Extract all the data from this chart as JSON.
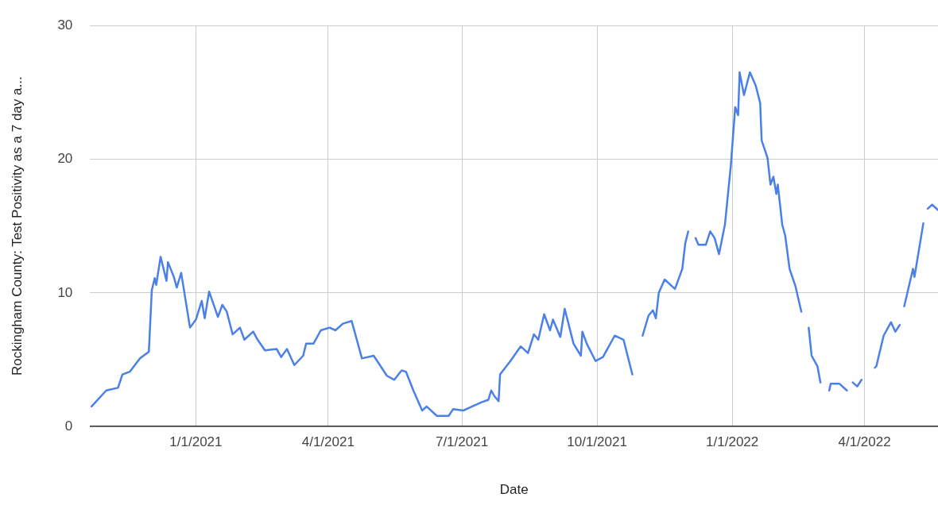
{
  "chart_data": {
    "type": "line",
    "xlabel": "Date",
    "ylabel": "Rockingham County: Test Positivity as a 7 day a...",
    "xlim": [
      "2020-10-21",
      "2022-05-21"
    ],
    "xticks": [
      {
        "value": "2021-01-01",
        "label": "1/1/2021"
      },
      {
        "value": "2021-04-01",
        "label": "4/1/2021"
      },
      {
        "value": "2021-07-01",
        "label": "7/1/2021"
      },
      {
        "value": "2021-10-01",
        "label": "10/1/2021"
      },
      {
        "value": "2022-01-01",
        "label": "1/1/2022"
      },
      {
        "value": "2022-04-01",
        "label": "4/1/2022"
      }
    ],
    "ylim": [
      0,
      30
    ],
    "yticks": [
      0,
      10,
      20,
      30
    ],
    "grid": true,
    "legend": false,
    "marker": "none",
    "line_style": "solid",
    "x": [
      "2020-10-22",
      "2020-11-01",
      "2020-11-09",
      "2020-11-12",
      "2020-11-17",
      "2020-11-24",
      "2020-11-30",
      "2020-12-02",
      "2020-12-04",
      "2020-12-05",
      "2020-12-08",
      "2020-12-12",
      "2020-12-13",
      "2020-12-17",
      "2020-12-19",
      "2020-12-22",
      "2020-12-28",
      "2021-01-01",
      "2021-01-05",
      "2021-01-07",
      "2021-01-10",
      "2021-01-16",
      "2021-01-19",
      "2021-01-22",
      "2021-01-26",
      "2021-01-31",
      "2021-02-03",
      "2021-02-09",
      "2021-02-12",
      "2021-02-17",
      "2021-02-25",
      "2021-02-28",
      "2021-03-04",
      "2021-03-09",
      "2021-03-15",
      "2021-03-17",
      "2021-03-22",
      "2021-03-27",
      "2021-04-02",
      "2021-04-06",
      "2021-04-11",
      "2021-04-17",
      "2021-04-24",
      "2021-05-02",
      "2021-05-11",
      "2021-05-16",
      "2021-05-21",
      "2021-05-24",
      "2021-05-29",
      "2021-06-04",
      "2021-06-07",
      "2021-06-14",
      "2021-06-22",
      "2021-06-25",
      "2021-07-02",
      "2021-07-08",
      "2021-07-14",
      "2021-07-19",
      "2021-07-21",
      "2021-07-23",
      "2021-07-26",
      "2021-07-27",
      "2021-08-03",
      "2021-08-10",
      "2021-08-15",
      "2021-08-19",
      "2021-08-22",
      "2021-08-26",
      "2021-08-30",
      "2021-09-01",
      "2021-09-06",
      "2021-09-09",
      "2021-09-15",
      "2021-09-20",
      "2021-09-21",
      "2021-09-24",
      "2021-09-30",
      "2021-10-05",
      "2021-10-13",
      "2021-10-19",
      "2021-10-25",
      "2021-10-28",
      "2021-11-01",
      "2021-11-05",
      "2021-11-08",
      "2021-11-10",
      "2021-11-12",
      "2021-11-16",
      "2021-11-23",
      "2021-11-28",
      "2021-11-30",
      "2021-12-02",
      "2021-12-04",
      "2021-12-07",
      "2021-12-09",
      "2021-12-14",
      "2021-12-17",
      "2021-12-20",
      "2021-12-23",
      "2021-12-27",
      "2021-12-31",
      "2022-01-03",
      "2022-01-05",
      "2022-01-06",
      "2022-01-09",
      "2022-01-13",
      "2022-01-17",
      "2022-01-20",
      "2022-01-21",
      "2022-01-25",
      "2022-01-27",
      "2022-01-29",
      "2022-01-31",
      "2022-02-01",
      "2022-02-04",
      "2022-02-06",
      "2022-02-09",
      "2022-02-13",
      "2022-02-17",
      "2022-02-19",
      "2022-02-22",
      "2022-02-24",
      "2022-02-28",
      "2022-03-02",
      "2022-03-05",
      "2022-03-08",
      "2022-03-09",
      "2022-03-15",
      "2022-03-20",
      "2022-03-22",
      "2022-03-24",
      "2022-03-27",
      "2022-03-30",
      "2022-04-04",
      "2022-04-08",
      "2022-04-09",
      "2022-04-14",
      "2022-04-19",
      "2022-04-22",
      "2022-04-25",
      "2022-04-26",
      "2022-04-28",
      "2022-05-04",
      "2022-05-05",
      "2022-05-11",
      "2022-05-12",
      "2022-05-14",
      "2022-05-17",
      "2022-05-21"
    ],
    "series": [
      {
        "color": "#4a80e8",
        "values": [
          1.5,
          2.7,
          2.9,
          3.9,
          4.1,
          5.1,
          5.6,
          10.2,
          11.1,
          10.6,
          12.7,
          10.9,
          12.3,
          11.2,
          10.4,
          11.5,
          7.4,
          8.0,
          9.4,
          8.1,
          10.1,
          8.2,
          9.1,
          8.6,
          6.9,
          7.4,
          6.5,
          7.1,
          6.5,
          5.7,
          5.8,
          5.2,
          5.8,
          4.6,
          5.3,
          6.2,
          6.2,
          7.2,
          7.4,
          7.2,
          7.7,
          7.9,
          5.1,
          5.3,
          3.8,
          3.5,
          4.2,
          4.1,
          2.7,
          1.2,
          1.5,
          0.8,
          0.8,
          1.3,
          1.2,
          1.5,
          1.8,
          2.0,
          2.7,
          2.3,
          1.9,
          3.9,
          4.9,
          6.0,
          5.5,
          6.9,
          6.5,
          8.4,
          7.2,
          8.0,
          6.7,
          8.8,
          6.2,
          5.3,
          7.1,
          6.2,
          4.9,
          5.2,
          6.8,
          6.5,
          3.9,
          null,
          6.8,
          8.3,
          8.7,
          8.1,
          10.0,
          11.0,
          10.3,
          11.8,
          13.7,
          14.6,
          null,
          14.1,
          13.6,
          13.6,
          14.6,
          14.1,
          12.9,
          15.1,
          19.5,
          23.9,
          23.3,
          26.5,
          24.8,
          26.5,
          25.5,
          24.2,
          21.4,
          20.1,
          18.1,
          18.7,
          17.4,
          18.1,
          15.1,
          14.3,
          11.8,
          10.5,
          8.6,
          null,
          7.4,
          5.3,
          4.5,
          3.3,
          null,
          2.7,
          3.2,
          3.2,
          2.7,
          null,
          3.3,
          3.0,
          3.5,
          null,
          4.4,
          4.5,
          6.8,
          7.8,
          7.1,
          7.6,
          null,
          9.0,
          11.8,
          11.2,
          15.2,
          null,
          16.3,
          16.6,
          16.2
        ]
      }
    ]
  }
}
